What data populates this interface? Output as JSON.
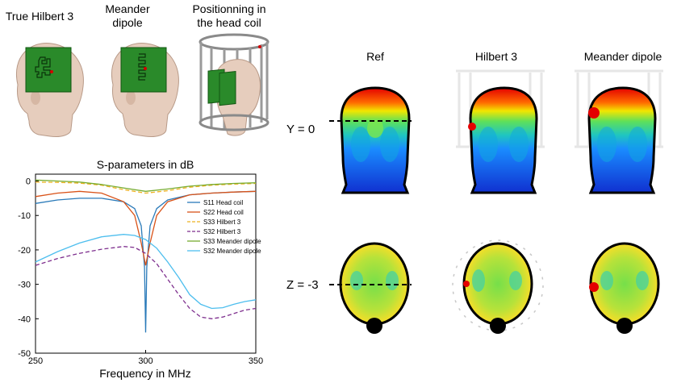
{
  "panels": {
    "true_hilbert": "True Hilbert 3",
    "meander_line1": "Meander",
    "meander_line2": "dipole",
    "positioning_line1": "Positionning in",
    "positioning_line2": "the head coil"
  },
  "maps": {
    "col_ref": "Ref",
    "col_hilbert": "Hilbert 3",
    "col_meander": "Meander dipole",
    "row_y": "Y = 0",
    "row_z": "Z  = -3"
  },
  "chart_data": {
    "type": "line",
    "title": "S-parameters in dB",
    "xlabel": "Frequency in MHz",
    "ylabel": "",
    "xlim": [
      250,
      350
    ],
    "ylim": [
      -50,
      2
    ],
    "xticks": [
      250,
      300,
      350
    ],
    "yticks": [
      0,
      -10,
      -20,
      -30,
      -40,
      -50
    ],
    "legend_position": "right-middle",
    "series": [
      {
        "name": "S11 Head coil",
        "color": "#2a7ab9",
        "dash": "solid",
        "x": [
          250,
          260,
          270,
          280,
          290,
          295,
          298,
          299.5,
          300,
          300.5,
          302,
          305,
          310,
          320,
          330,
          340,
          350
        ],
        "y": [
          -6.5,
          -5.5,
          -5,
          -5,
          -6,
          -8,
          -13,
          -25,
          -44,
          -25,
          -13,
          -8,
          -5.5,
          -4,
          -3.5,
          -3.2,
          -3
        ]
      },
      {
        "name": "S22 Head coil",
        "color": "#d95319",
        "dash": "solid",
        "x": [
          250,
          260,
          270,
          280,
          290,
          295,
          298,
          300,
          302,
          305,
          310,
          320,
          330,
          340,
          350
        ],
        "y": [
          -4.5,
          -3.5,
          -3,
          -3.5,
          -6,
          -10,
          -18,
          -24.5,
          -18,
          -10,
          -6,
          -4,
          -3.5,
          -3.2,
          -3
        ]
      },
      {
        "name": "S33 Hilbert 3",
        "color": "#eeb220",
        "dash": "dashed",
        "x": [
          250,
          260,
          270,
          280,
          290,
          300,
          310,
          320,
          330,
          340,
          350
        ],
        "y": [
          -0.3,
          -0.4,
          -0.6,
          -1.2,
          -2.5,
          -3.5,
          -2.8,
          -1.8,
          -1.2,
          -0.9,
          -0.7
        ]
      },
      {
        "name": "S32 Hilbert 3",
        "color": "#7e2f8e",
        "dash": "dashed",
        "x": [
          250,
          260,
          270,
          280,
          290,
          295,
          300,
          305,
          310,
          315,
          320,
          325,
          330,
          335,
          340,
          345,
          350
        ],
        "y": [
          -24.5,
          -22.5,
          -21,
          -19.8,
          -19,
          -19.3,
          -21,
          -24,
          -28.5,
          -33,
          -37,
          -39.5,
          -40,
          -39.5,
          -38.5,
          -37.5,
          -37
        ]
      },
      {
        "name": "S33 Meander dipole",
        "color": "#77ac30",
        "dash": "solid",
        "x": [
          250,
          260,
          270,
          280,
          290,
          300,
          310,
          320,
          330,
          340,
          350
        ],
        "y": [
          0.3,
          0,
          -0.3,
          -1,
          -2,
          -3,
          -2.3,
          -1.5,
          -1,
          -0.7,
          -0.5
        ]
      },
      {
        "name": "S32 Meander dipole",
        "color": "#4dbeee",
        "dash": "solid",
        "x": [
          250,
          260,
          270,
          280,
          290,
          295,
          300,
          305,
          310,
          315,
          320,
          325,
          330,
          335,
          340,
          345,
          350
        ],
        "y": [
          -23.5,
          -20.5,
          -18,
          -16.2,
          -15.5,
          -15.8,
          -17,
          -19.5,
          -23.5,
          -28,
          -33,
          -35.8,
          -37,
          -36.8,
          -35.8,
          -35,
          -34.5
        ]
      }
    ]
  }
}
